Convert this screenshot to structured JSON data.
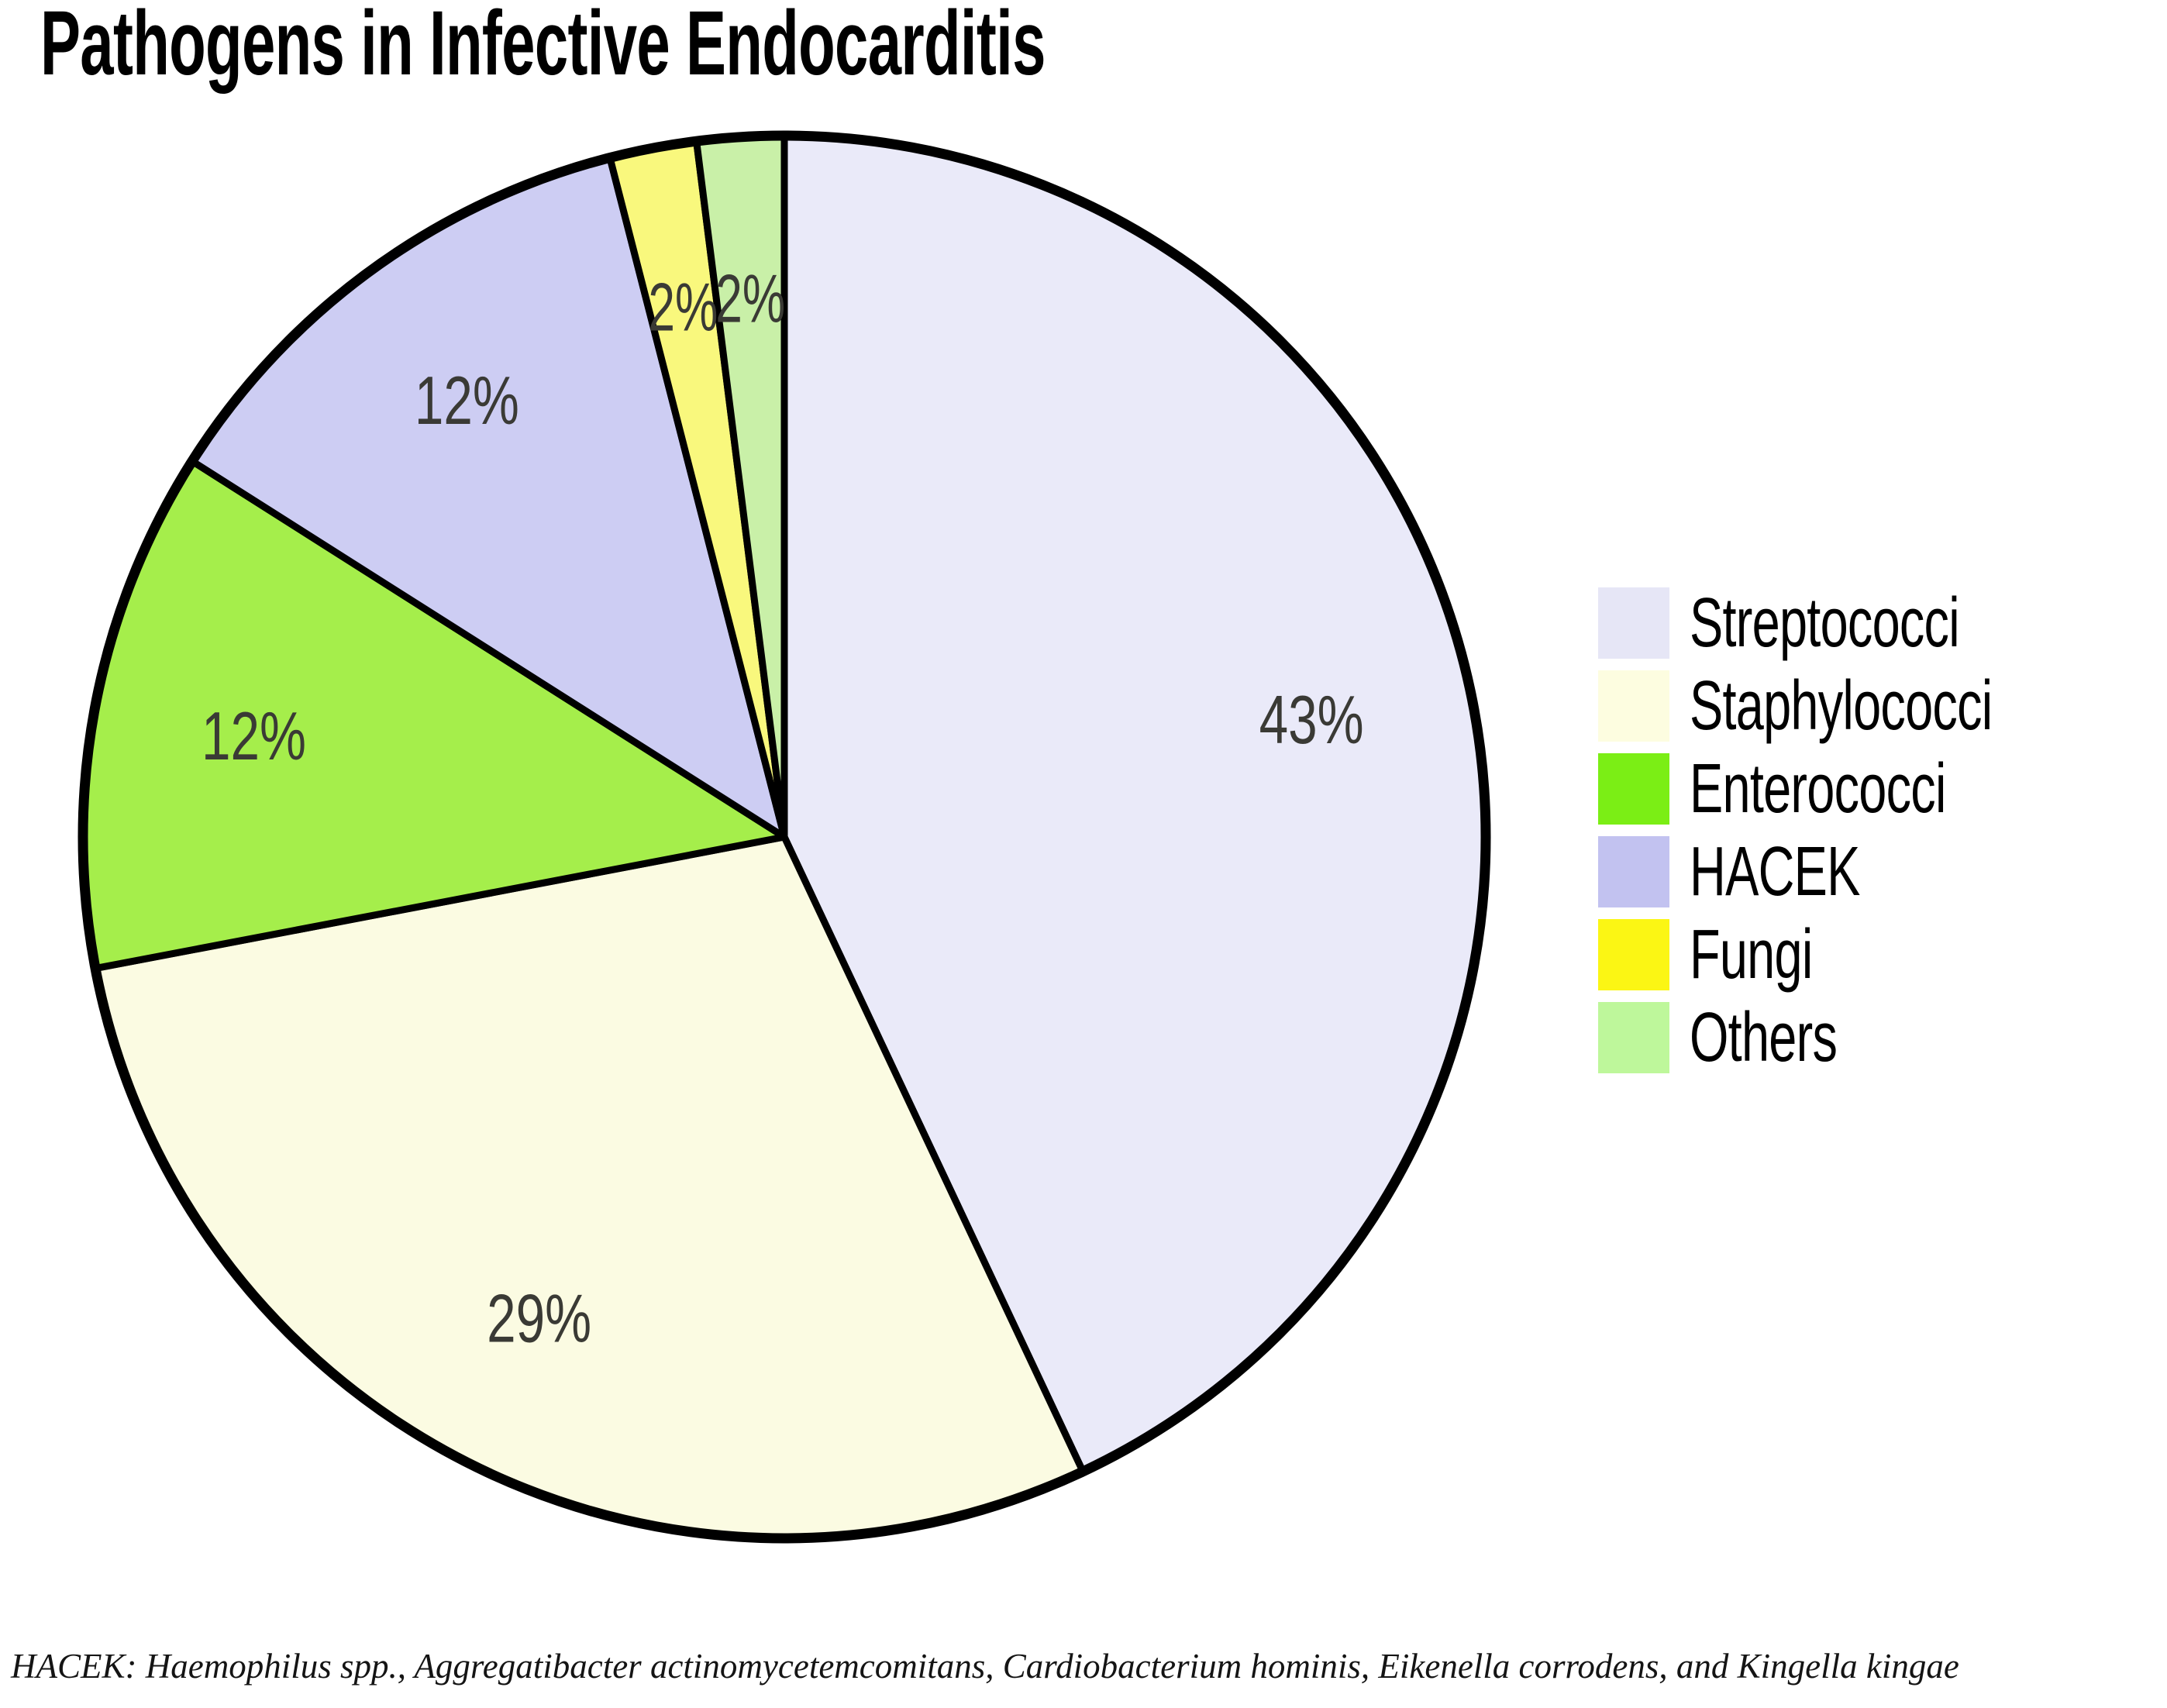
{
  "title": "Pathogens in Infective Endocarditis",
  "footnote": "HACEK: Haemophilus spp., Aggregatibacter actinomycetemcomitans, Cardiobacterium hominis, Eikenella corrodens, and Kingella kingae",
  "chart_data": {
    "type": "pie",
    "title": "Pathogens in Infective Endocarditis",
    "unit": "%",
    "direction": "clockwise",
    "start_angle_deg": 0,
    "legend_position": "right",
    "grid": false,
    "categories": [
      "Streptococci",
      "Staphylococci",
      "Enterococci",
      "HACEK",
      "Fungi",
      "Others"
    ],
    "values": [
      43,
      29,
      12,
      12,
      2,
      2
    ],
    "items": [
      {
        "name": "Streptococci",
        "value": 43,
        "label": "43%",
        "slice_color": "#eaeaf9",
        "legend_color": "#e6e6f6"
      },
      {
        "name": "Staphylococci",
        "value": 29,
        "label": "29%",
        "slice_color": "#fbfbe2",
        "legend_color": "#fdfde0"
      },
      {
        "name": "Enterococci",
        "value": 12,
        "label": "12%",
        "slice_color": "#a5ee4b",
        "legend_color": "#7bee15"
      },
      {
        "name": "HACEK",
        "value": 12,
        "label": "12%",
        "slice_color": "#cdcdf3",
        "legend_color": "#c2c2f0"
      },
      {
        "name": "Fungi",
        "value": 2,
        "label": "2%",
        "slice_color": "#f9f87d",
        "legend_color": "#fbf614"
      },
      {
        "name": "Others",
        "value": 2,
        "label": "2%",
        "slice_color": "#c9f0a8",
        "legend_color": "#bef79b"
      }
    ],
    "colors": {
      "slice_outline": "#000000",
      "percent_label_text": "#3a3a35",
      "legend_text": "#000000",
      "title_text": "#000000",
      "background": "#ffffff"
    }
  }
}
